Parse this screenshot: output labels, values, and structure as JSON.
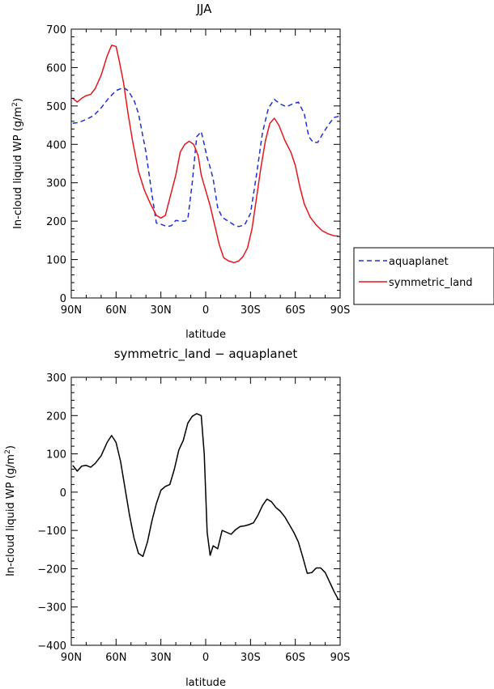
{
  "chart_data": [
    {
      "type": "line",
      "title": "JJA",
      "xlabel": "latitude",
      "ylabel": "In-cloud liquid WP (g/m²)",
      "ylabel_main": "In-cloud liquid WP (g/m",
      "ylabel_sup": "2",
      "ylabel_close": ")",
      "xlim": [
        90,
        -90
      ],
      "ylim": [
        0,
        700
      ],
      "yticks": [
        0,
        100,
        200,
        300,
        400,
        500,
        600,
        700
      ],
      "xticks": [
        {
          "value": 90,
          "label": "90N"
        },
        {
          "value": 60,
          "label": "60N"
        },
        {
          "value": 30,
          "label": "30N"
        },
        {
          "value": 0,
          "label": "0"
        },
        {
          "value": -30,
          "label": "30S"
        },
        {
          "value": -60,
          "label": "60S"
        },
        {
          "value": -90,
          "label": "90S"
        }
      ],
      "legend": "outside-right",
      "series": [
        {
          "name": "aquaplanet",
          "color": "#1f2fd6",
          "dash": "dashed",
          "x": [
            89,
            85,
            80,
            75,
            70,
            65,
            60,
            55,
            52,
            48,
            45,
            40,
            36,
            33,
            30,
            26,
            23,
            20,
            17,
            14,
            12,
            9,
            6,
            3,
            1,
            -1,
            -3,
            -5,
            -8,
            -11,
            -15,
            -19,
            -22,
            -26,
            -30,
            -34,
            -38,
            -42,
            -46,
            -50,
            -54,
            -58,
            -62,
            -66,
            -69,
            -72,
            -75,
            -78,
            -82,
            -86,
            -89
          ],
          "y": [
            455,
            457,
            465,
            475,
            495,
            520,
            540,
            548,
            540,
            515,
            480,
            380,
            270,
            195,
            192,
            186,
            188,
            202,
            200,
            200,
            205,
            300,
            420,
            433,
            400,
            365,
            340,
            310,
            235,
            210,
            200,
            190,
            186,
            190,
            220,
            320,
            430,
            495,
            517,
            505,
            498,
            505,
            510,
            480,
            420,
            405,
            405,
            425,
            450,
            470,
            473
          ]
        },
        {
          "name": "symmetric_land",
          "color": "#e5161b",
          "dash": "solid",
          "x": [
            89,
            86,
            83,
            80,
            77,
            74,
            70,
            66,
            63,
            60,
            58,
            55,
            52,
            49,
            45,
            41,
            37,
            33,
            30,
            27,
            24,
            20,
            17,
            14,
            11,
            8,
            5,
            3,
            0,
            -3,
            -6,
            -9,
            -12,
            -15,
            -19,
            -22,
            -25,
            -28,
            -31,
            -34,
            -37,
            -40,
            -43,
            -46,
            -49,
            -53,
            -57,
            -60,
            -63,
            -66,
            -70,
            -74,
            -78,
            -82,
            -86,
            -89
          ],
          "y": [
            520,
            510,
            520,
            527,
            530,
            545,
            580,
            630,
            658,
            655,
            620,
            560,
            480,
            410,
            330,
            280,
            245,
            215,
            208,
            215,
            260,
            320,
            380,
            400,
            408,
            400,
            370,
            320,
            280,
            240,
            190,
            140,
            105,
            97,
            92,
            96,
            108,
            130,
            180,
            260,
            340,
            410,
            455,
            468,
            450,
            410,
            380,
            345,
            290,
            245,
            210,
            190,
            175,
            167,
            162,
            161
          ]
        }
      ]
    },
    {
      "type": "line",
      "title": "symmetric_land − aquaplanet",
      "xlabel": "latitude",
      "ylabel": "In-cloud liquid WP (g/m²)",
      "ylabel_main": "In-cloud liquid WP (g/m",
      "ylabel_sup": "2",
      "ylabel_close": ")",
      "xlim": [
        90,
        -90
      ],
      "ylim": [
        -400,
        300
      ],
      "yticks": [
        -400,
        -300,
        -200,
        -100,
        0,
        100,
        200,
        300
      ],
      "xticks": [
        {
          "value": 90,
          "label": "90N"
        },
        {
          "value": 60,
          "label": "60N"
        },
        {
          "value": 30,
          "label": "30N"
        },
        {
          "value": 0,
          "label": "0"
        },
        {
          "value": -30,
          "label": "30S"
        },
        {
          "value": -60,
          "label": "60S"
        },
        {
          "value": -90,
          "label": "90S"
        }
      ],
      "series": [
        {
          "color": "#000000",
          "dash": "solid",
          "x": [
            89,
            86,
            83,
            80,
            77,
            74,
            70,
            66,
            63,
            60,
            57,
            54,
            51,
            48,
            45,
            42,
            39,
            36,
            33,
            30,
            27,
            24,
            21,
            18,
            15,
            12,
            9,
            6,
            3,
            1,
            -1,
            -3,
            -5,
            -8,
            -11,
            -14,
            -17,
            -20,
            -23,
            -26,
            -29,
            -32,
            -35,
            -38,
            -41,
            -44,
            -47,
            -50,
            -53,
            -56,
            -59,
            -62,
            -65,
            -68,
            -71,
            -74,
            -77,
            -80,
            -83,
            -86,
            -89
          ],
          "y": [
            70,
            55,
            68,
            70,
            65,
            75,
            95,
            130,
            148,
            130,
            80,
            10,
            -60,
            -120,
            -160,
            -168,
            -130,
            -75,
            -30,
            5,
            15,
            20,
            60,
            110,
            135,
            180,
            198,
            205,
            200,
            100,
            -105,
            -165,
            -140,
            -148,
            -100,
            -105,
            -110,
            -98,
            -90,
            -88,
            -85,
            -80,
            -60,
            -35,
            -18,
            -25,
            -40,
            -50,
            -65,
            -85,
            -105,
            -130,
            -170,
            -212,
            -210,
            -198,
            -198,
            -210,
            -235,
            -260,
            -282
          ]
        }
      ]
    }
  ]
}
